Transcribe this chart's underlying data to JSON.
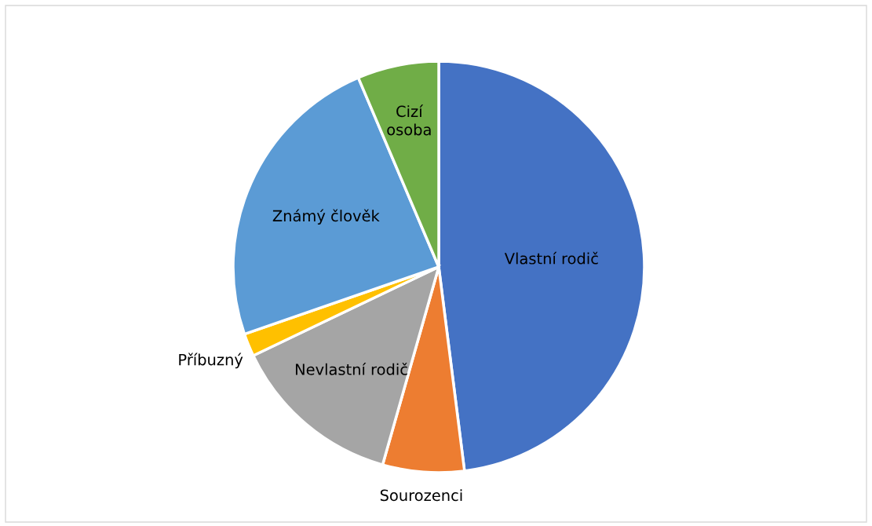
{
  "chart_data": {
    "type": "pie",
    "categories": [
      "Vlastní rodič",
      "Sourozenci",
      "Nevlastní rodič",
      "Příbuzný",
      "Známý člověk",
      "Cizí\nosoba"
    ],
    "values": [
      48.0,
      6.4,
      13.5,
      1.8,
      23.9,
      6.4
    ],
    "colors": [
      "#4472c4",
      "#ed7d31",
      "#a5a5a5",
      "#ffc000",
      "#5b9bd5",
      "#70ad47"
    ],
    "legend": false
  }
}
